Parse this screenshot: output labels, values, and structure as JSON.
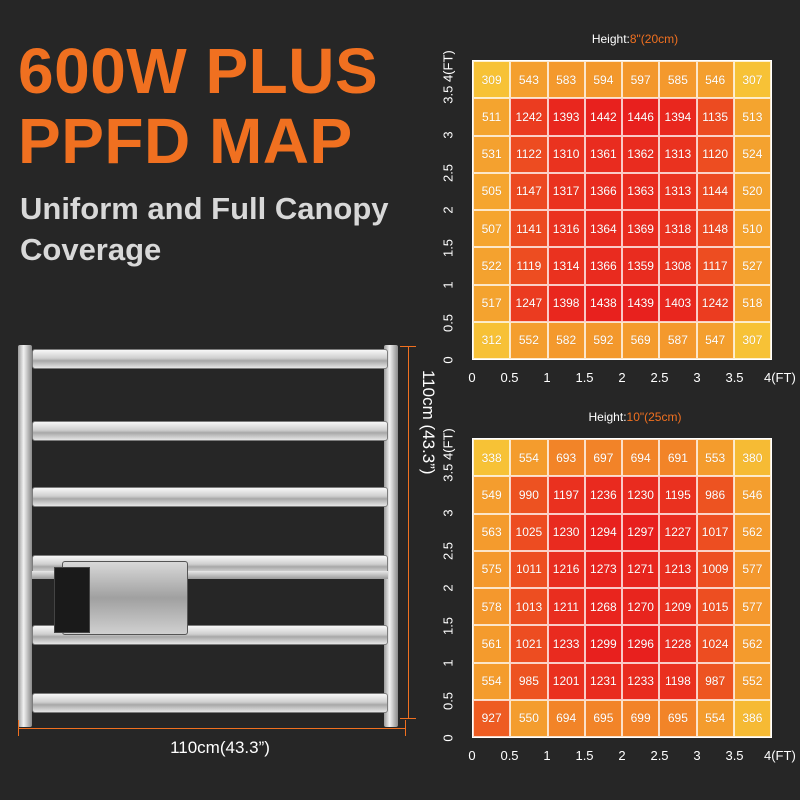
{
  "headline": {
    "line1": "600W PLUS",
    "line2": "PPFD MAP"
  },
  "subtitle": {
    "line1": "Uniform and Full Canopy",
    "line2": "Coverage"
  },
  "dimensions": {
    "height_label": "110cm (43.3”)",
    "width_label": "110cm(43.3”)"
  },
  "colors": {
    "accent": "#f07020",
    "background": "#262626",
    "map_center": "#e8201e",
    "map_edge": "#f7c236"
  },
  "chart_data": [
    {
      "type": "heatmap",
      "title_prefix": "Height:",
      "title_value": "8\"(20cm)",
      "x_ticks": [
        "0",
        "0.5",
        "1",
        "1.5",
        "2",
        "2.5",
        "3",
        "3.5",
        "4(FT)"
      ],
      "y_ticks": [
        "0",
        "0.5",
        "1",
        "1.5",
        "2",
        "2.5",
        "3",
        "3.5 4(FT)"
      ],
      "xlim": [
        0,
        4
      ],
      "ylim": [
        0,
        4
      ],
      "rows": [
        [
          309,
          543,
          583,
          594,
          597,
          585,
          546,
          307
        ],
        [
          511,
          1242,
          1393,
          1442,
          1446,
          1394,
          1135,
          513
        ],
        [
          531,
          1122,
          1310,
          1361,
          1362,
          1313,
          1120,
          524
        ],
        [
          505,
          1147,
          1317,
          1366,
          1363,
          1313,
          1144,
          520
        ],
        [
          507,
          1141,
          1316,
          1364,
          1369,
          1318,
          1148,
          510
        ],
        [
          522,
          1119,
          1314,
          1366,
          1359,
          1308,
          1117,
          527
        ],
        [
          517,
          1247,
          1398,
          1438,
          1439,
          1403,
          1242,
          518
        ],
        [
          312,
          552,
          582,
          592,
          569,
          587,
          547,
          307
        ]
      ]
    },
    {
      "type": "heatmap",
      "title_prefix": "Height:",
      "title_value": "10\"(25cm)",
      "x_ticks": [
        "0",
        "0.5",
        "1",
        "1.5",
        "2",
        "2.5",
        "3",
        "3.5",
        "4(FT)"
      ],
      "y_ticks": [
        "0",
        "0.5",
        "1",
        "1.5",
        "2",
        "2.5",
        "3",
        "3.5 4(FT)"
      ],
      "xlim": [
        0,
        4
      ],
      "ylim": [
        0,
        4
      ],
      "rows": [
        [
          338,
          554,
          693,
          697,
          694,
          691,
          553,
          380
        ],
        [
          549,
          990,
          1197,
          1236,
          1230,
          1195,
          986,
          546
        ],
        [
          563,
          1025,
          1230,
          1294,
          1297,
          1227,
          1017,
          562
        ],
        [
          575,
          1011,
          1216,
          1273,
          1271,
          1213,
          1009,
          577
        ],
        [
          578,
          1013,
          1211,
          1268,
          1270,
          1209,
          1015,
          577
        ],
        [
          561,
          1021,
          1233,
          1299,
          1296,
          1228,
          1024,
          562
        ],
        [
          554,
          985,
          1201,
          1231,
          1233,
          1198,
          987,
          552
        ],
        [
          927,
          550,
          694,
          695,
          699,
          695,
          554,
          386
        ]
      ]
    }
  ]
}
